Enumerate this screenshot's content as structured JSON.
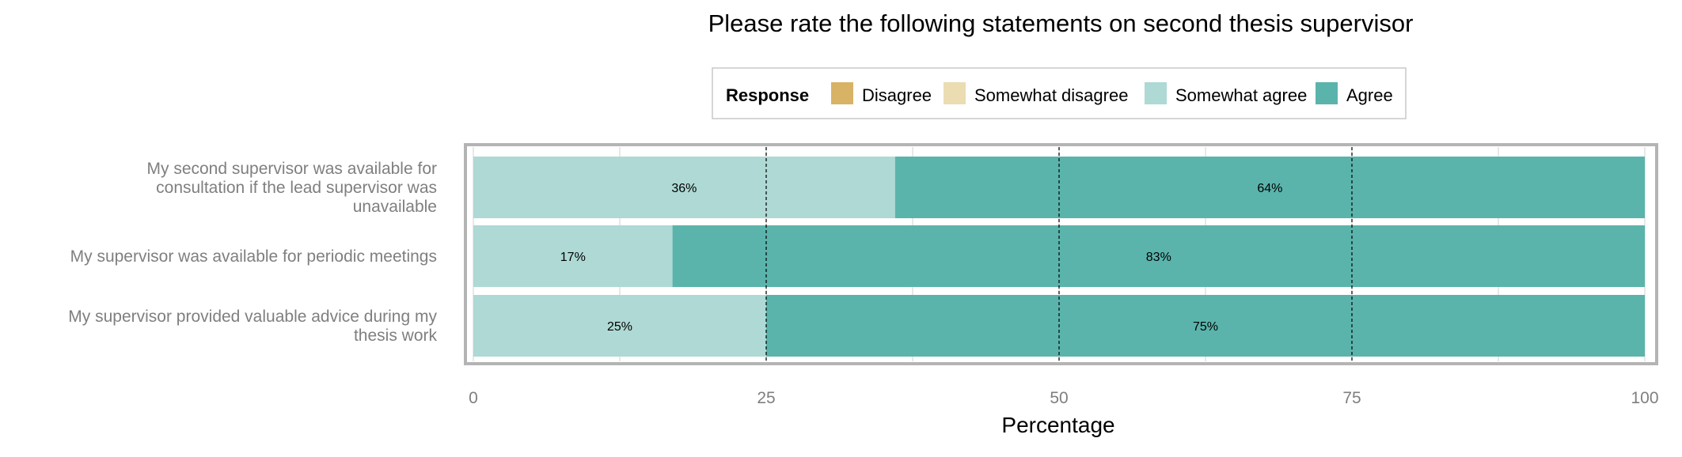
{
  "chart_data": {
    "type": "bar",
    "orientation": "horizontal",
    "stacked": true,
    "title": "Please rate the following statements on second thesis supervisor",
    "xlabel": "Percentage",
    "ylabel": "",
    "xlim": [
      0,
      100
    ],
    "xticks": [
      0,
      25,
      50,
      75,
      100
    ],
    "grid": true,
    "legend_position": "top",
    "legend_title": "Response",
    "categories": [
      [
        "My second supervisor was available for",
        "consultation if the lead supervisor was",
        "unavailable"
      ],
      [
        "My supervisor was available for periodic meetings"
      ],
      [
        "My supervisor provided valuable advice during my",
        "thesis work"
      ]
    ],
    "series": [
      {
        "name": "Disagree",
        "color": "#d8b365",
        "values": [
          0,
          0,
          0
        ],
        "labels": [
          "",
          "",
          ""
        ]
      },
      {
        "name": "Somewhat disagree",
        "color": "#ebdcb2",
        "values": [
          0,
          0,
          0
        ],
        "labels": [
          "",
          "",
          ""
        ]
      },
      {
        "name": "Somewhat agree",
        "color": "#aed9d5",
        "values": [
          36,
          17,
          25
        ],
        "labels": [
          "36%",
          "17%",
          "25%"
        ]
      },
      {
        "name": "Agree",
        "color": "#5ab4ac",
        "values": [
          64,
          83,
          75
        ],
        "labels": [
          "64%",
          "83%",
          "75%"
        ]
      }
    ]
  }
}
